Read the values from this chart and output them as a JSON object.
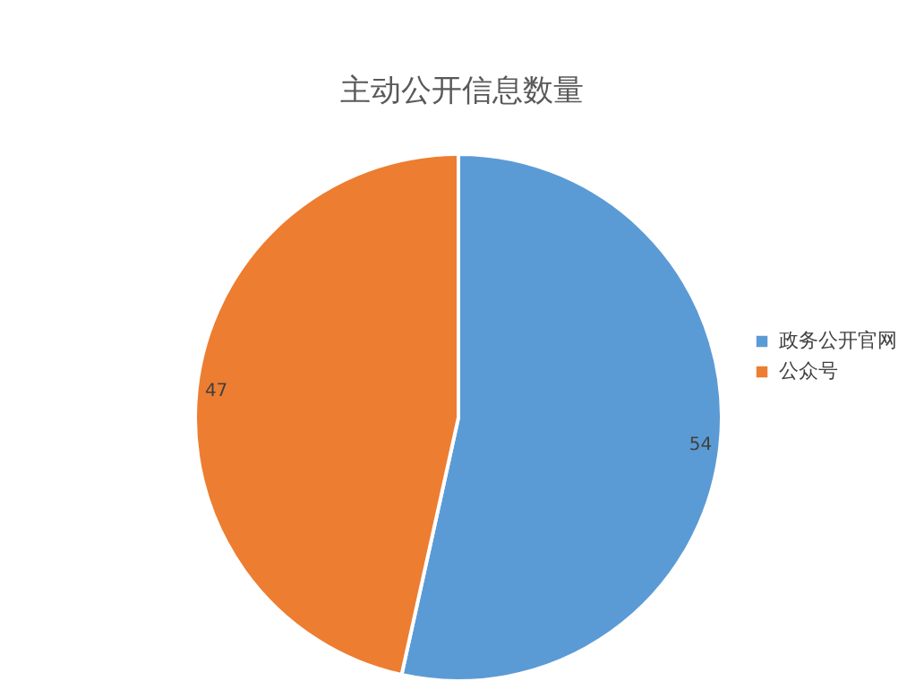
{
  "chart_data": {
    "type": "pie",
    "title": "主动公开信息数量",
    "categories": [
      "政务公开官网",
      "公众号"
    ],
    "values": [
      54,
      47
    ],
    "colors": [
      "#5b9bd5",
      "#ed7d31"
    ],
    "data_labels": true,
    "legend": "right"
  }
}
